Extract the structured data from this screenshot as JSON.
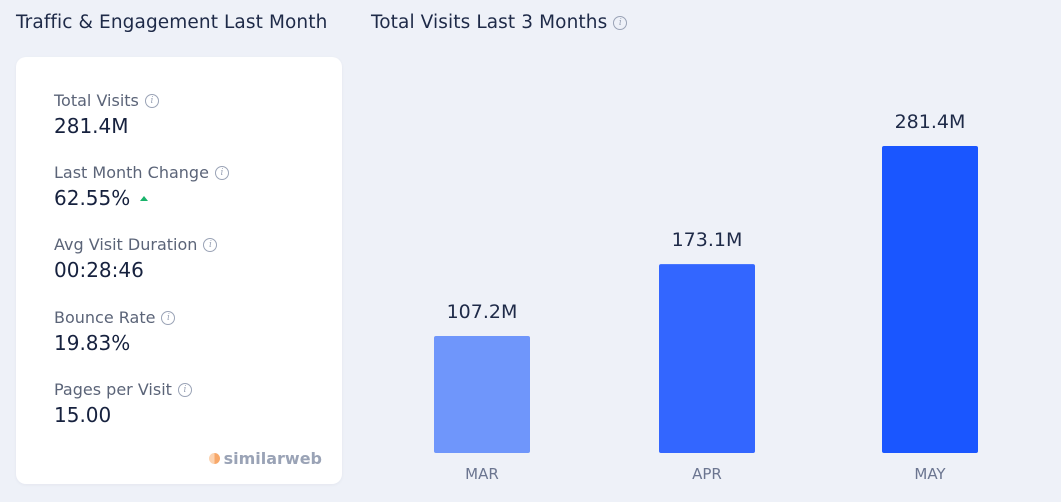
{
  "left_panel": {
    "title": "Traffic & Engagement Last Month",
    "metrics": [
      {
        "label": "Total Visits",
        "value": "281.4M"
      },
      {
        "label": "Last Month Change",
        "value": "62.55%",
        "trend": "up"
      },
      {
        "label": "Avg Visit Duration",
        "value": "00:28:46"
      },
      {
        "label": "Bounce Rate",
        "value": "19.83%"
      },
      {
        "label": "Pages per Visit",
        "value": "15.00"
      }
    ],
    "brand": "similarweb"
  },
  "right_panel": {
    "title": "Total Visits Last 3 Months"
  },
  "colors": {
    "bar_mar": "#6f96fb",
    "bar_apr": "#3366ff",
    "bar_may": "#1a56ff",
    "trend_up": "#19b36b"
  },
  "chart_data": {
    "type": "bar",
    "title": "Total Visits Last 3 Months",
    "categories": [
      "MAR",
      "APR",
      "MAY"
    ],
    "values": [
      107.2,
      173.1,
      281.4
    ],
    "value_labels": [
      "107.2M",
      "173.1M",
      "281.4M"
    ],
    "unit": "M",
    "ylim": [
      0,
      281.4
    ],
    "xlabel": "",
    "ylabel": "",
    "grid": false
  }
}
